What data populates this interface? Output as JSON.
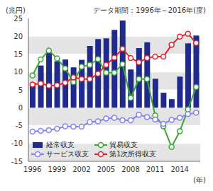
{
  "chart_data": {
    "type": "bar",
    "subtitle": "データ期間：1996年～2016年(度)",
    "y_label": "(兆円)",
    "x_label": "(年)",
    "x": [
      1996,
      1997,
      1998,
      1999,
      2000,
      2001,
      2002,
      2003,
      2004,
      2005,
      2006,
      2007,
      2008,
      2009,
      2010,
      2011,
      2012,
      2013,
      2014,
      2015,
      2016
    ],
    "xlim": [
      1995.5,
      2016.5
    ],
    "xticks": [
      1996,
      1999,
      2002,
      2005,
      2008,
      2011,
      2014
    ],
    "ylim": [
      -15,
      25
    ],
    "yticks": [
      -15,
      -10,
      -5,
      0,
      5,
      10,
      15,
      20,
      25
    ],
    "grid": true,
    "legend": "lower left",
    "series": [
      {
        "name": "経常収支",
        "type": "bar",
        "color": "#1f2a8c",
        "values": [
          7.0,
          11.8,
          15.5,
          13.0,
          13.5,
          11.3,
          13.4,
          17.3,
          19.2,
          19.4,
          21.8,
          24.4,
          10.7,
          16.7,
          18.3,
          8.1,
          4.2,
          2.4,
          8.7,
          18.0,
          20.2
        ]
      },
      {
        "name": "貿易収支",
        "type": "line",
        "marker": "circle",
        "color": "#3aa635",
        "values": [
          9.0,
          13.5,
          16.0,
          13.8,
          11.0,
          7.2,
          11.5,
          12.0,
          13.6,
          9.8,
          9.8,
          12.2,
          2.7,
          8.0,
          8.0,
          -2.2,
          -5.2,
          -11.0,
          -6.6,
          -0.5,
          5.8
        ]
      },
      {
        "name": "サービス収支",
        "type": "line",
        "marker": "circle",
        "color": "#8080f0",
        "values": [
          -6.7,
          -6.5,
          -6.3,
          -5.9,
          -5.2,
          -5.3,
          -5.3,
          -4.0,
          -3.8,
          -3.0,
          -2.8,
          -3.5,
          -3.5,
          -2.0,
          -2.6,
          -3.3,
          -4.5,
          -3.4,
          -2.8,
          -1.8,
          -1.4
        ]
      },
      {
        "name": "第1次所得収支",
        "type": "line",
        "marker": "circle",
        "color": "#e0202a",
        "values": [
          6.5,
          6.8,
          6.2,
          6.3,
          7.0,
          8.5,
          8.0,
          8.0,
          9.5,
          12.0,
          14.0,
          16.5,
          13.9,
          12.7,
          13.9,
          14.3,
          14.3,
          17.6,
          19.9,
          20.7,
          18.1
        ]
      }
    ]
  }
}
